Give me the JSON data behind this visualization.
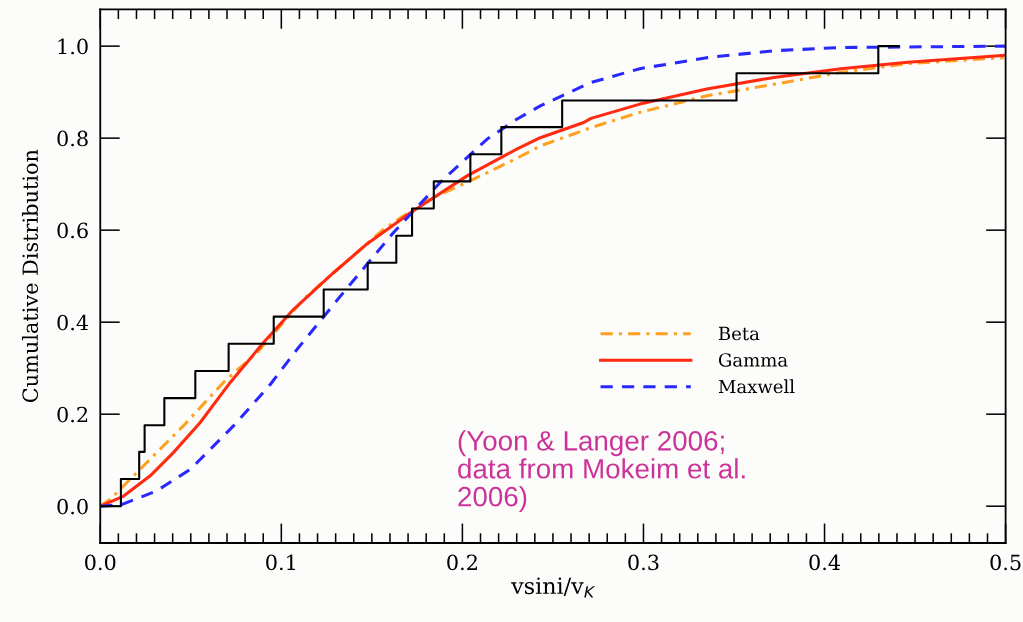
{
  "chart_data": {
    "type": "line",
    "xlabel": "vsini/v$_{K}$",
    "ylabel": "Cumulative Distribution",
    "xlim": [
      0,
      0.5
    ],
    "ylim": [
      -0.08,
      1.08
    ],
    "xticks": [
      {
        "value": 0.0,
        "label": "0.0"
      },
      {
        "value": 0.01,
        "label": null
      },
      {
        "value": 0.02,
        "label": null
      },
      {
        "value": 0.03,
        "label": null
      },
      {
        "value": 0.04,
        "label": null
      },
      {
        "value": 0.05,
        "label": null
      },
      {
        "value": 0.06,
        "label": null
      },
      {
        "value": 0.07,
        "label": null
      },
      {
        "value": 0.08,
        "label": null
      },
      {
        "value": 0.09,
        "label": null
      },
      {
        "value": 0.1,
        "label": "0.1"
      },
      {
        "value": 0.11,
        "label": null
      },
      {
        "value": 0.12,
        "label": null
      },
      {
        "value": 0.13,
        "label": null
      },
      {
        "value": 0.14,
        "label": null
      },
      {
        "value": 0.15,
        "label": null
      },
      {
        "value": 0.16,
        "label": null
      },
      {
        "value": 0.17,
        "label": null
      },
      {
        "value": 0.18,
        "label": null
      },
      {
        "value": 0.19,
        "label": null
      },
      {
        "value": 0.2,
        "label": "0.2"
      },
      {
        "value": 0.21,
        "label": null
      },
      {
        "value": 0.22,
        "label": null
      },
      {
        "value": 0.23,
        "label": null
      },
      {
        "value": 0.24,
        "label": null
      },
      {
        "value": 0.25,
        "label": null
      },
      {
        "value": 0.26,
        "label": null
      },
      {
        "value": 0.27,
        "label": null
      },
      {
        "value": 0.28,
        "label": null
      },
      {
        "value": 0.29,
        "label": null
      },
      {
        "value": 0.3,
        "label": "0.3"
      },
      {
        "value": 0.31,
        "label": null
      },
      {
        "value": 0.32,
        "label": null
      },
      {
        "value": 0.33,
        "label": null
      },
      {
        "value": 0.34,
        "label": null
      },
      {
        "value": 0.35,
        "label": null
      },
      {
        "value": 0.36,
        "label": null
      },
      {
        "value": 0.37,
        "label": null
      },
      {
        "value": 0.38,
        "label": null
      },
      {
        "value": 0.39,
        "label": null
      },
      {
        "value": 0.4,
        "label": "0.4"
      },
      {
        "value": 0.41,
        "label": null
      },
      {
        "value": 0.42,
        "label": null
      },
      {
        "value": 0.43,
        "label": null
      },
      {
        "value": 0.44,
        "label": null
      },
      {
        "value": 0.45,
        "label": null
      },
      {
        "value": 0.46,
        "label": null
      },
      {
        "value": 0.47,
        "label": null
      },
      {
        "value": 0.48,
        "label": null
      },
      {
        "value": 0.49,
        "label": null
      },
      {
        "value": 0.5,
        "label": "0.5"
      }
    ],
    "yticks": [
      {
        "value": 0.0,
        "label": "0.0"
      },
      {
        "value": 0.2,
        "label": "0.2"
      },
      {
        "value": 0.4,
        "label": "0.4"
      },
      {
        "value": 0.6,
        "label": "0.6"
      },
      {
        "value": 0.8,
        "label": "0.8"
      },
      {
        "value": 1.0,
        "label": "1.0"
      }
    ],
    "grid": false,
    "legend": "center",
    "marker": "none",
    "series": [
      {
        "type": "step",
        "color": "#000000",
        "line_style": "solid",
        "x": [
          0,
          0.0114,
          0.0215,
          0.0245,
          0.0354,
          0.0525,
          0.0709,
          0.0958,
          0.1234,
          0.1477,
          0.1635,
          0.1722,
          0.1842,
          0.2044,
          0.2215,
          0.2551,
          0.3514,
          0.4297,
          0.441
        ],
        "values": [
          0,
          0.059,
          0.118,
          0.176,
          0.235,
          0.294,
          0.353,
          0.412,
          0.471,
          0.529,
          0.588,
          0.647,
          0.706,
          0.765,
          0.824,
          0.882,
          0.941,
          1.0,
          1.0
        ]
      },
      {
        "name": "Beta",
        "color": "#ffa020",
        "line_style": "dashdot",
        "x": [
          0,
          0.0055,
          0.0184,
          0.0313,
          0.046,
          0.068,
          0.0866,
          0.1123,
          0.129,
          0.1565,
          0.18,
          0.2026,
          0.23,
          0.243,
          0.267,
          0.271,
          0.298,
          0.335,
          0.372,
          0.409,
          0.446,
          0.499
        ],
        "values": [
          0,
          0.015,
          0.066,
          0.117,
          0.175,
          0.269,
          0.334,
          0.45,
          0.508,
          0.602,
          0.664,
          0.704,
          0.756,
          0.783,
          0.817,
          0.823,
          0.856,
          0.892,
          0.917,
          0.943,
          0.962,
          0.975
        ]
      },
      {
        "name": "Gamma",
        "color": "#ff2a10",
        "line_style": "solid",
        "x": [
          0,
          0.0129,
          0.0276,
          0.0405,
          0.0552,
          0.0718,
          0.0902,
          0.1068,
          0.129,
          0.1473,
          0.1713,
          0.2026,
          0.23,
          0.243,
          0.267,
          0.271,
          0.298,
          0.335,
          0.372,
          0.409,
          0.446,
          0.499
        ],
        "values": [
          0,
          0.022,
          0.066,
          0.117,
          0.182,
          0.269,
          0.356,
          0.428,
          0.508,
          0.57,
          0.638,
          0.718,
          0.776,
          0.801,
          0.834,
          0.843,
          0.874,
          0.907,
          0.932,
          0.951,
          0.965,
          0.98
        ]
      },
      {
        "name": "Maxwell",
        "color": "#2828ff",
        "line_style": "dashed",
        "x": [
          0,
          0.0114,
          0.031,
          0.0497,
          0.0737,
          0.094,
          0.1087,
          0.129,
          0.1344,
          0.162,
          0.1878,
          0.2137,
          0.23,
          0.243,
          0.271,
          0.298,
          0.335,
          0.372,
          0.409,
          0.5
        ],
        "values": [
          0,
          0.003,
          0.033,
          0.08,
          0.175,
          0.265,
          0.341,
          0.439,
          0.465,
          0.595,
          0.704,
          0.798,
          0.841,
          0.87,
          0.921,
          0.951,
          0.975,
          0.99,
          0.997,
          1.0
        ]
      }
    ],
    "annotations": [
      "(Yoon & Langer 2006;\ndata from Mokeim et al.\n2006)"
    ]
  }
}
